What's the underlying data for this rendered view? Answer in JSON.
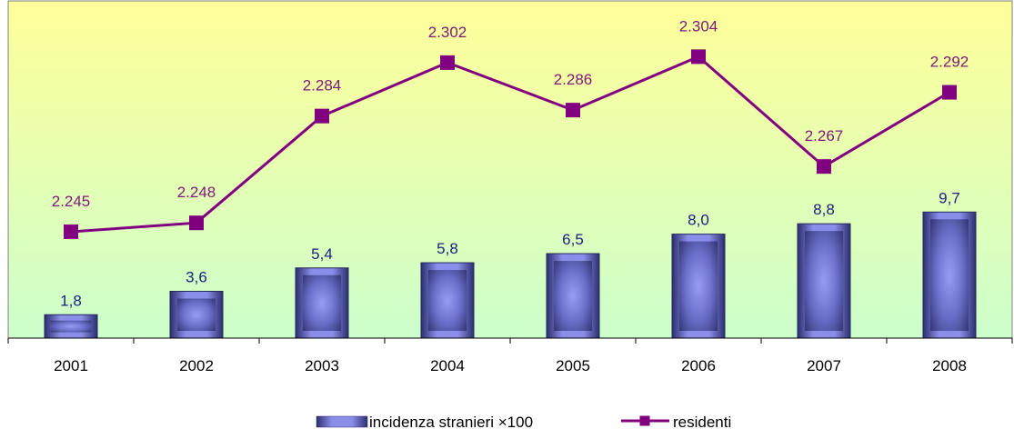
{
  "chart_data": {
    "type": "bar",
    "categories": [
      "2001",
      "2002",
      "2003",
      "2004",
      "2005",
      "2006",
      "2007",
      "2008"
    ],
    "series": [
      {
        "name": "incidenza stranieri ×100",
        "kind": "bar",
        "values": [
          1.8,
          3.6,
          5.4,
          5.8,
          6.5,
          8.0,
          8.8,
          9.7
        ],
        "labels": [
          "1,8",
          "3,6",
          "5,4",
          "5,8",
          "6,5",
          "8,0",
          "8,8",
          "9,7"
        ],
        "color": "#5b5fb0"
      },
      {
        "name": "residenti",
        "kind": "line",
        "values": [
          2245,
          2248,
          2284,
          2302,
          2286,
          2304,
          2267,
          2292
        ],
        "labels": [
          "2.245",
          "2.248",
          "2.284",
          "2.302",
          "2.286",
          "2.304",
          "2.267",
          "2.292"
        ],
        "color": "#800080"
      }
    ],
    "legend_position": "bottom-center",
    "grid": false,
    "background_gradient": [
      "#ffff99",
      "#ccffcc"
    ]
  }
}
